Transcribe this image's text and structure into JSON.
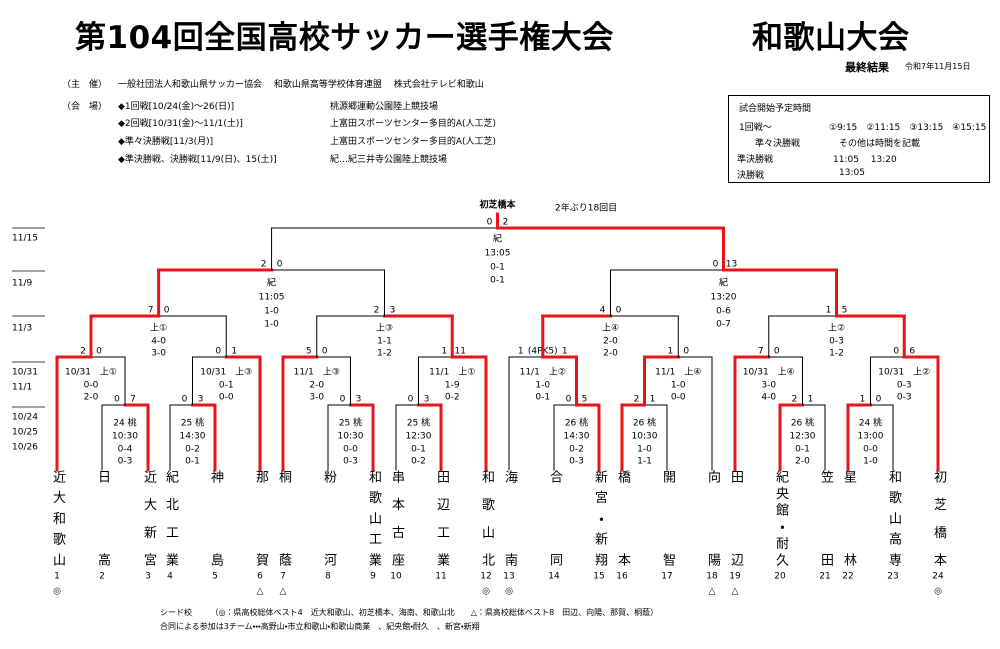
{
  "header": {
    "title": "第104回全国高校サッカー選手権大会",
    "subtitle": "和歌山大会",
    "result_label": "最終結果",
    "date": "令和7年11月15日"
  },
  "info": {
    "organizer_label": "（主　催）",
    "organizer": "一般社団法人和歌山県サッカー協会　 和歌山県高等学校体育連盟　 株式会社テレビ和歌山",
    "venue_label": "（会　場）",
    "venues": [
      [
        "◆1回戦[10/24(金)～26(日)]",
        "桃源郷運動公園陸上競技場"
      ],
      [
        "◆2回戦[10/31(金)～11/1(土)]",
        "上富田スポーツセンター多目的A(人工芝)"
      ],
      [
        "◆準々決勝戦[11/3(月)]",
        "上富田スポーツセンター多目的A(人工芝)"
      ],
      [
        "◆準決勝戦、決勝戦[11/9(日)、15(土)]",
        "紀…紀三井寺公園陸上競技場"
      ]
    ]
  },
  "schedule": {
    "title": "試合開始予定時間",
    "rows": [
      [
        "1回戦～",
        "①9:15　②11:15　③13:15　④15:15"
      ],
      [
        "準々決勝戦",
        "その他は時間を記載"
      ],
      [
        "準決勝戦",
        "11:05　 13:20"
      ],
      [
        "決勝戦",
        "13:05"
      ]
    ]
  },
  "dates": [
    "11/15",
    "11/9",
    "11/3",
    "10/31",
    "11/1",
    "10/24",
    "10/25",
    "10/26"
  ],
  "champion": {
    "name": "初芝橋本",
    "note": "2年ぶり18回目"
  },
  "teams": [
    {
      "name": "近大和歌山",
      "no": 1,
      "seed": "◎"
    },
    {
      "name": "日高",
      "no": 2
    },
    {
      "name": "近大新宮",
      "no": 3
    },
    {
      "name": "紀北工業",
      "no": 4
    },
    {
      "name": "神島",
      "no": 5
    },
    {
      "name": "那賀",
      "no": 6,
      "seed": "△"
    },
    {
      "name": "桐蔭",
      "no": 7,
      "seed": "△"
    },
    {
      "name": "粉河",
      "no": 8
    },
    {
      "name": "和歌山工業",
      "no": 9
    },
    {
      "name": "串本古座",
      "no": 10
    },
    {
      "name": "田辺工業",
      "no": 11
    },
    {
      "name": "和歌山北",
      "no": 12,
      "seed": "◎"
    },
    {
      "name": "海南",
      "no": 13,
      "seed": "◎"
    },
    {
      "name": "合同",
      "no": 14
    },
    {
      "name": "新宮・新翔",
      "no": 15
    },
    {
      "name": "橋本",
      "no": 16
    },
    {
      "name": "開智",
      "no": 17
    },
    {
      "name": "向陽",
      "no": 18,
      "seed": "△"
    },
    {
      "name": "田辺",
      "no": 19,
      "seed": "△"
    },
    {
      "name": "紀央館・耐久",
      "no": 20
    },
    {
      "name": "笠田",
      "no": 21
    },
    {
      "name": "星林",
      "no": 22
    },
    {
      "name": "和歌山高専",
      "no": 23
    },
    {
      "name": "初芝橋本",
      "no": 24,
      "seed": "◎"
    }
  ],
  "matches": [
    {
      "scores": [
        0,
        7
      ],
      "label": "24 桃",
      "time": "10:30",
      "halves": [
        "0-4",
        "0-3"
      ]
    },
    {
      "scores": [
        0,
        3
      ],
      "label": "25 桃",
      "time": "14:30",
      "halves": [
        "0-2",
        "0-1"
      ]
    },
    {
      "scores": [
        0,
        3
      ],
      "label": "25 桃",
      "time": "10:30",
      "halves": [
        "0-0",
        "0-3"
      ]
    },
    {
      "scores": [
        0,
        3
      ],
      "label": "25 桃",
      "time": "12:30",
      "halves": [
        "0-1",
        "0-2"
      ]
    },
    {
      "scores": [
        0,
        5
      ],
      "label": "26 桃",
      "time": "14:30",
      "halves": [
        "0-2",
        "0-3"
      ]
    },
    {
      "scores": [
        2,
        1
      ],
      "label": "26 桃",
      "time": "10:30",
      "halves": [
        "1-0",
        "1-1"
      ]
    },
    {
      "scores": [
        2,
        1
      ],
      "label": "26 桃",
      "time": "12:30",
      "halves": [
        "0-1",
        "2-0"
      ]
    },
    {
      "scores": [
        1,
        0
      ],
      "label": "24 桃",
      "time": "13:00",
      "halves": [
        "0-0",
        "1-0"
      ]
    },
    {
      "scores": [
        2,
        0
      ],
      "label": "10/31　上①",
      "halves": [
        "0-0",
        "2-0"
      ]
    },
    {
      "scores": [
        0,
        1
      ],
      "label": "10/31　上③",
      "halves": [
        "0-1",
        "0-0"
      ]
    },
    {
      "scores": [
        5,
        0
      ],
      "label": "11/1　上③",
      "halves": [
        "2-0",
        "3-0"
      ]
    },
    {
      "scores": [
        1,
        11
      ],
      "label": "11/1　上①",
      "halves": [
        "1-9",
        "0-2"
      ]
    },
    {
      "scores": [
        1,
        1
      ],
      "pk": "(4PK5)",
      "label": "11/1　上②",
      "halves": [
        "1-0",
        "0-1"
      ]
    },
    {
      "scores": [
        1,
        0
      ],
      "label": "11/1　上④",
      "halves": [
        "1-0",
        "0-0"
      ]
    },
    {
      "scores": [
        7,
        0
      ],
      "label": "10/31　上④",
      "halves": [
        "3-0",
        "4-0"
      ]
    },
    {
      "scores": [
        0,
        6
      ],
      "label": "10/31　上②",
      "halves": [
        "0-3",
        "0-3"
      ]
    },
    {
      "scores": [
        7,
        0
      ],
      "label": "上①",
      "halves": [
        "4-0",
        "3-0"
      ]
    },
    {
      "scores": [
        2,
        3
      ],
      "label": "上③",
      "halves": [
        "1-1",
        "1-2"
      ]
    },
    {
      "scores": [
        4,
        0
      ],
      "label": "上④",
      "halves": [
        "2-0",
        "2-0"
      ]
    },
    {
      "scores": [
        1,
        5
      ],
      "label": "上②",
      "halves": [
        "0-3",
        "1-2"
      ]
    },
    {
      "scores": [
        2,
        0
      ],
      "label": "紀",
      "time": "11:05",
      "halves": [
        "1-0",
        "1-0"
      ]
    },
    {
      "scores": [
        0,
        13
      ],
      "label": "紀",
      "time": "13:20",
      "halves": [
        "0-6",
        "0-7"
      ]
    },
    {
      "scores": [
        0,
        2
      ],
      "label": "紀",
      "time": "13:05",
      "halves": [
        "0-1",
        "0-1"
      ]
    }
  ],
  "footer": [
    "シード校　　 （◎：県高校総体ベスト4　近大和歌山、初芝橋本、海南、和歌山北　　△：県高校総体ベスト8　田辺、向陽、那賀、桐蔭）",
    "合同による参加は3チーム・・・高野山・市立和歌山・和歌山商業　、紀央館・耐久　、新宮・新翔"
  ]
}
